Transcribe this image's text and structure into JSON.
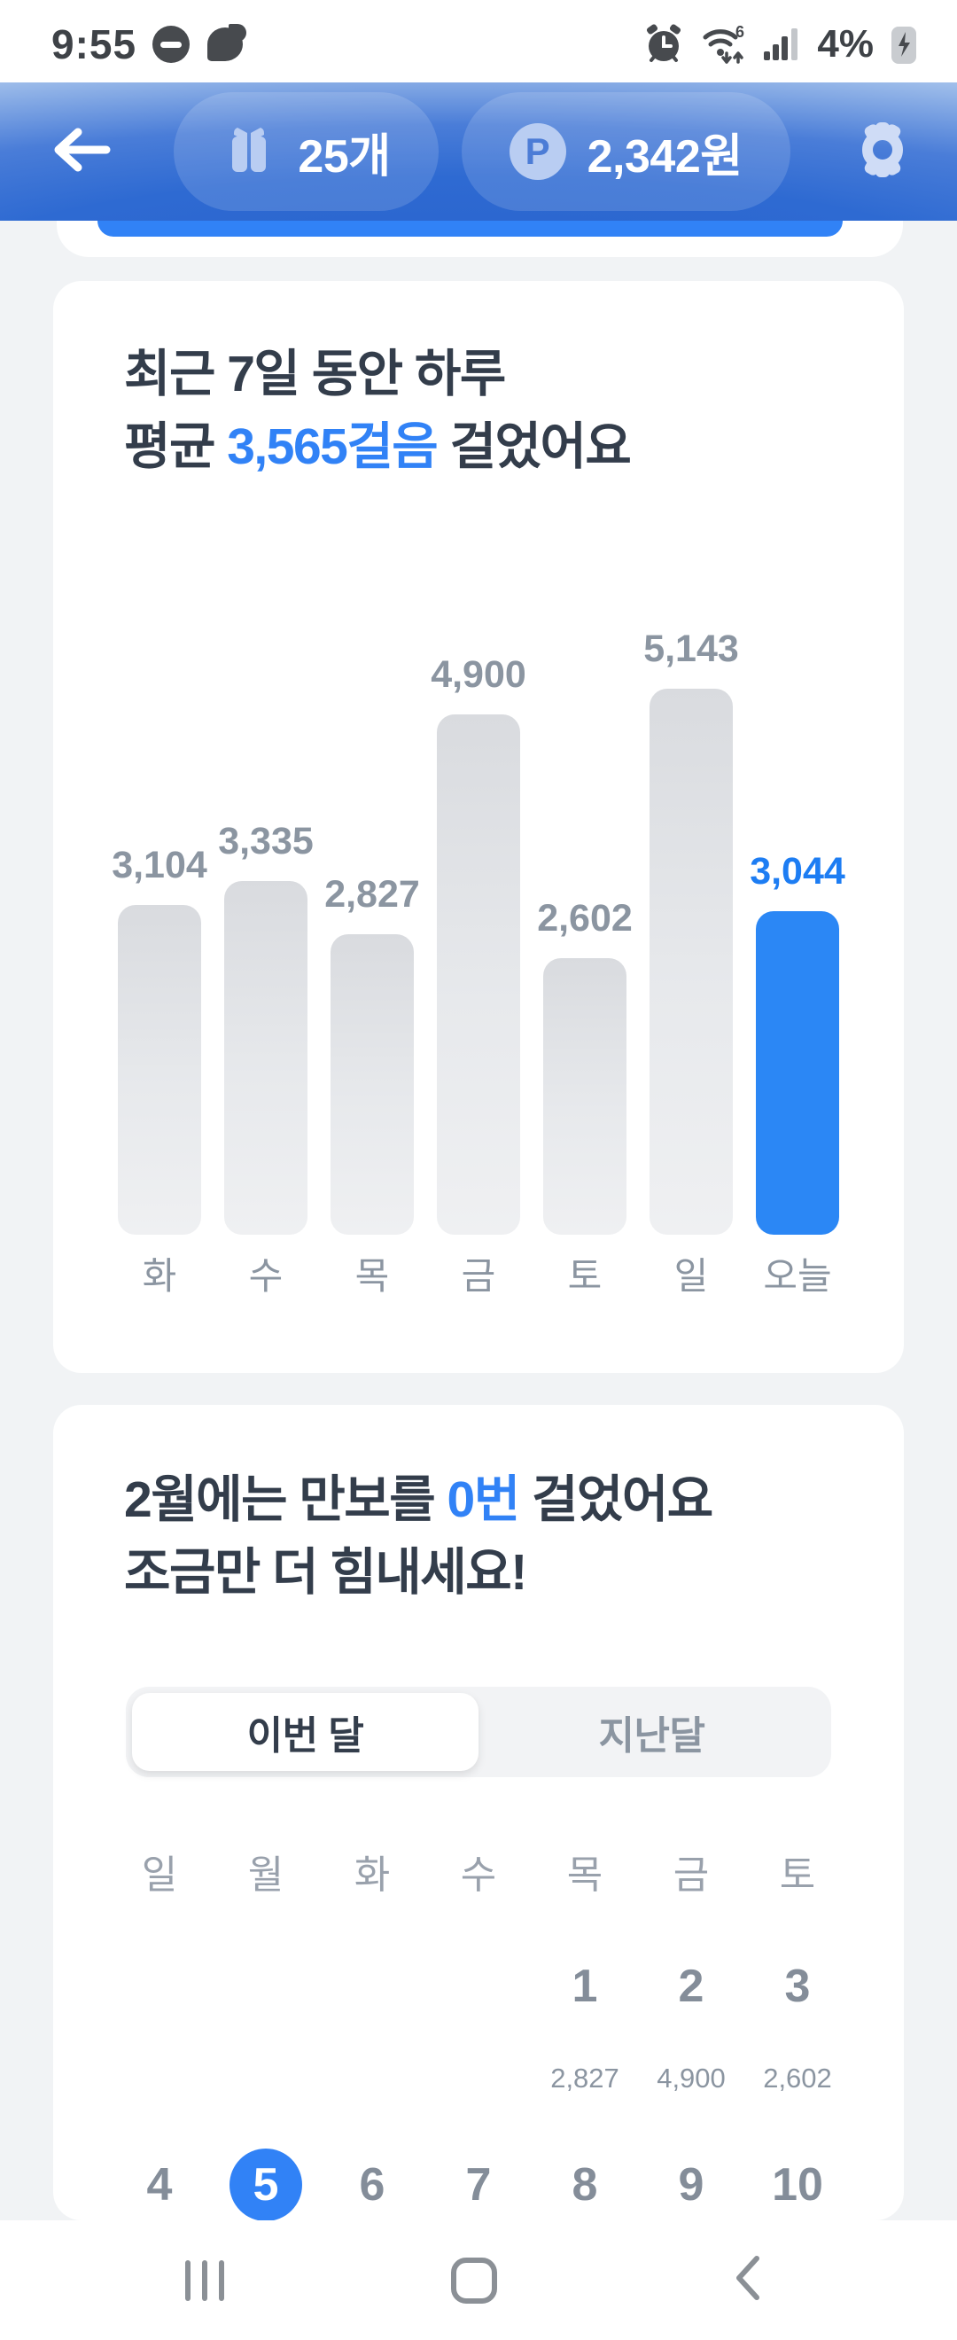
{
  "status_bar": {
    "time": "9:55",
    "battery_percent": "4%",
    "left_icons": [
      "do-not-disturb-icon",
      "chat-bubble-icon"
    ],
    "right_icons": [
      "alarm-icon",
      "wifi6-icon",
      "signal-icon",
      "battery-charging-icon"
    ]
  },
  "header": {
    "pills": [
      {
        "icon": "gift-icon",
        "label": "25개"
      },
      {
        "icon": "point-p-icon",
        "label": "2,342원"
      }
    ]
  },
  "weekly_card": {
    "title_line1": "최근 7일 동안 하루",
    "title_line2_prefix": "평균 ",
    "title_line2_accent": "3,565걸음",
    "title_line2_suffix": " 걸었어요"
  },
  "chart_data": {
    "type": "bar",
    "title": "최근 7일 동안 하루 평균 3,565걸음 걸었어요",
    "categories": [
      "화",
      "수",
      "목",
      "금",
      "토",
      "일",
      "오늘"
    ],
    "values": [
      3104,
      3335,
      2827,
      4900,
      2602,
      5143,
      3044
    ],
    "value_labels": [
      "3,104",
      "3,335",
      "2,827",
      "4,900",
      "2,602",
      "5,143",
      "3,044"
    ],
    "highlight_index": 6,
    "ylim": [
      0,
      5143
    ],
    "grid": false,
    "legend": "none",
    "xlabel": "",
    "ylabel": ""
  },
  "monthly_card": {
    "title_line1_prefix": "2월에는 만보를 ",
    "title_line1_accent": "0번",
    "title_line1_suffix": " 걸었어요",
    "title_line2": "조금만 더 힘내세요!",
    "tabs": [
      {
        "label": "이번 달",
        "selected": true
      },
      {
        "label": "지난달",
        "selected": false
      }
    ],
    "calendar": {
      "weekdays": [
        "일",
        "월",
        "화",
        "수",
        "목",
        "금",
        "토"
      ],
      "weeks": [
        {
          "dates": [
            "",
            "",
            "",
            "",
            "1",
            "2",
            "3"
          ],
          "values": [
            "",
            "",
            "",
            "",
            "2,827",
            "4,900",
            "2,602"
          ],
          "selected_date": ""
        },
        {
          "dates": [
            "4",
            "5",
            "6",
            "7",
            "8",
            "9",
            "10"
          ],
          "values": [],
          "selected_date": "5"
        }
      ]
    }
  },
  "colors": {
    "accent": "#3182f6",
    "bar_highlight": "#2b87f5",
    "bar_gray_top": "#d9dbdf",
    "bar_gray_bottom": "#eff0f2",
    "label_gray": "#8b95a1",
    "title_text": "#333d4b",
    "page_background": "#f1f3f5",
    "selected_date_circle": "#3182f6"
  }
}
